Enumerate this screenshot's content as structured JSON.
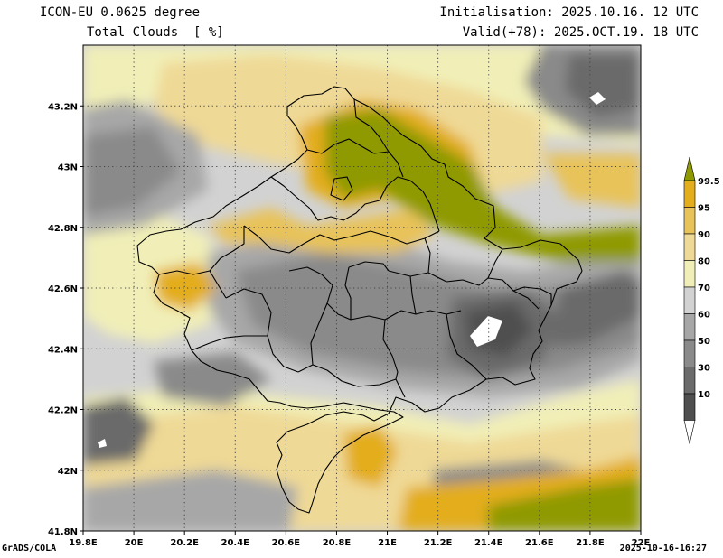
{
  "header": {
    "model": "ICON-EU 0.0625 degree",
    "variable": "Total Clouds  [ %]",
    "init": "Initialisation: 2025.10.16. 12 UTC",
    "valid": "Valid(+78): 2025.OCT.19. 18 UTC"
  },
  "footer": {
    "software": "GrADS/COLA",
    "timestamp": "2025-10-16-16:27"
  },
  "map": {
    "lon_range": [
      19.8,
      22.0
    ],
    "lat_range": [
      41.8,
      43.4
    ],
    "x_ticks": [
      "19.8E",
      "20E",
      "20.2E",
      "20.4E",
      "20.6E",
      "20.8E",
      "21E",
      "21.2E",
      "21.4E",
      "21.6E",
      "21.8E",
      "22E"
    ],
    "y_ticks": [
      "41.8N",
      "42N",
      "42.2N",
      "42.4N",
      "42.6N",
      "42.8N",
      "43N",
      "43.2N"
    ],
    "gridlines": "dotted"
  },
  "legend": {
    "levels": [
      "99.5",
      "95",
      "90",
      "80",
      "70",
      "60",
      "50",
      "30",
      "10"
    ],
    "colors": [
      "#8f9a00",
      "#e3ad1c",
      "#e8c35a",
      "#efd996",
      "#f1efb7",
      "#d2d2d2",
      "#a7a7a7",
      "#8a8a8a",
      "#6b6b6b",
      "#4f4f4f",
      "#ffffff"
    ]
  }
}
